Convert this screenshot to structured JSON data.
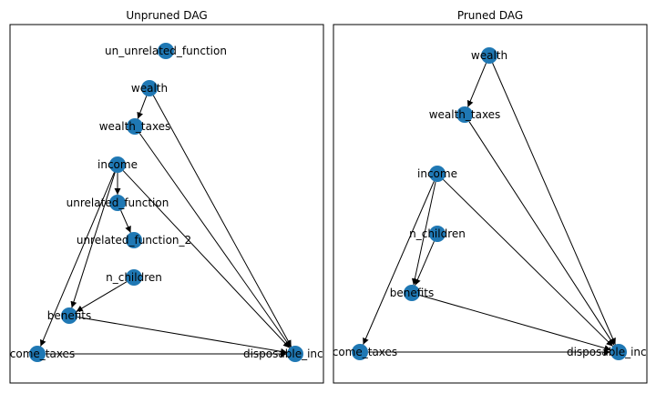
{
  "colors": {
    "node": "#1f78b4",
    "edge": "#000000",
    "frame": "#000000",
    "background": "#ffffff"
  },
  "panels": [
    {
      "id": "unpruned",
      "title": "Unpruned DAG",
      "nodes": [
        {
          "id": "un_unrelated_function",
          "label": "un_unrelated_function"
        },
        {
          "id": "wealth",
          "label": "wealth"
        },
        {
          "id": "wealth_taxes",
          "label": "wealth_taxes"
        },
        {
          "id": "income",
          "label": "income"
        },
        {
          "id": "unrelated_function",
          "label": "unrelated_function"
        },
        {
          "id": "unrelated_function_2",
          "label": "unrelated_function_2"
        },
        {
          "id": "n_children",
          "label": "n_children"
        },
        {
          "id": "benefits",
          "label": "benefits"
        },
        {
          "id": "income_taxes",
          "label": "income_taxes"
        },
        {
          "id": "disposable_income",
          "label": "disposable_income"
        }
      ],
      "edges": [
        [
          "wealth",
          "wealth_taxes"
        ],
        [
          "wealth",
          "disposable_income"
        ],
        [
          "wealth_taxes",
          "disposable_income"
        ],
        [
          "income",
          "unrelated_function"
        ],
        [
          "income",
          "benefits"
        ],
        [
          "income",
          "income_taxes"
        ],
        [
          "income",
          "disposable_income"
        ],
        [
          "unrelated_function",
          "unrelated_function_2"
        ],
        [
          "n_children",
          "benefits"
        ],
        [
          "benefits",
          "disposable_income"
        ],
        [
          "income_taxes",
          "disposable_income"
        ]
      ]
    },
    {
      "id": "pruned",
      "title": "Pruned DAG",
      "nodes": [
        {
          "id": "wealth",
          "label": "wealth"
        },
        {
          "id": "wealth_taxes",
          "label": "wealth_taxes"
        },
        {
          "id": "income",
          "label": "income"
        },
        {
          "id": "n_children",
          "label": "n_children"
        },
        {
          "id": "benefits",
          "label": "benefits"
        },
        {
          "id": "income_taxes",
          "label": "income_taxes"
        },
        {
          "id": "disposable_income",
          "label": "disposable_income"
        }
      ],
      "edges": [
        [
          "wealth",
          "wealth_taxes"
        ],
        [
          "wealth",
          "disposable_income"
        ],
        [
          "wealth_taxes",
          "disposable_income"
        ],
        [
          "income",
          "benefits"
        ],
        [
          "income",
          "income_taxes"
        ],
        [
          "income",
          "disposable_income"
        ],
        [
          "n_children",
          "benefits"
        ],
        [
          "benefits",
          "disposable_income"
        ],
        [
          "income_taxes",
          "disposable_income"
        ]
      ]
    }
  ]
}
